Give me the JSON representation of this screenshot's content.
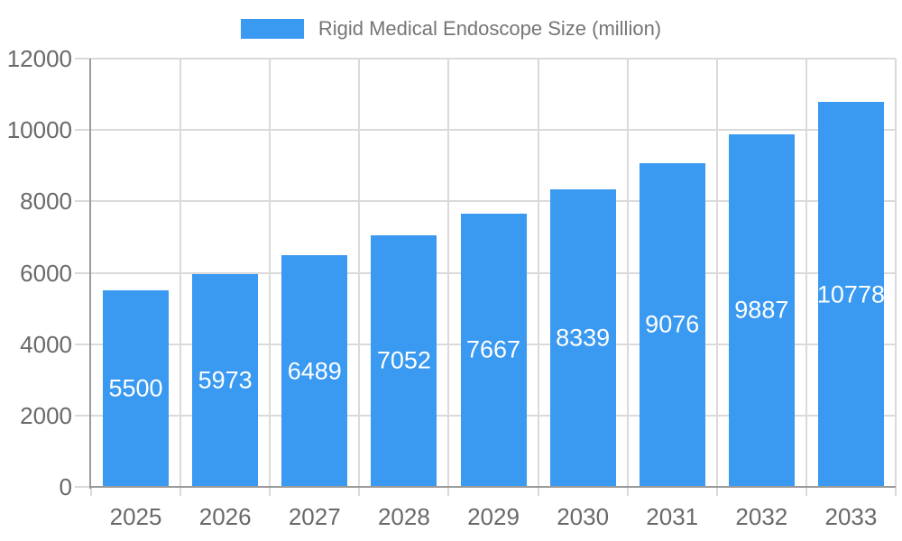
{
  "legend": {
    "label": "Rigid Medical Endoscope Size (million)",
    "swatch_color": "#3a99f0"
  },
  "chart_data": {
    "type": "bar",
    "title": "Rigid Medical Endoscope Size (million)",
    "series_name": "Rigid Medical Endoscope Size (million)",
    "categories": [
      "2025",
      "2026",
      "2027",
      "2028",
      "2029",
      "2030",
      "2031",
      "2032",
      "2033"
    ],
    "values": [
      5500,
      5973,
      6489,
      7052,
      7667,
      8339,
      9076,
      9887,
      10778
    ],
    "value_labels": [
      "5500",
      "5973",
      "6489",
      "7052",
      "7667",
      "8339",
      "9076",
      "9887",
      "10778"
    ],
    "xlabel": "",
    "ylabel": "",
    "ylim": [
      0,
      12000
    ],
    "yticks": [
      0,
      2000,
      4000,
      6000,
      8000,
      10000,
      12000
    ],
    "ytick_labels": [
      "0",
      "2000",
      "4000",
      "6000",
      "8000",
      "10000",
      "12000"
    ],
    "grid": true,
    "legend_position": "top",
    "colors": {
      "bar": "#3a99f0",
      "value_label": "#ffffff",
      "tick_label": "#696969",
      "legend_label": "#757575",
      "gridline": "#dadada",
      "axis_line": "#9b9b9b",
      "background": "#ffffff"
    }
  }
}
